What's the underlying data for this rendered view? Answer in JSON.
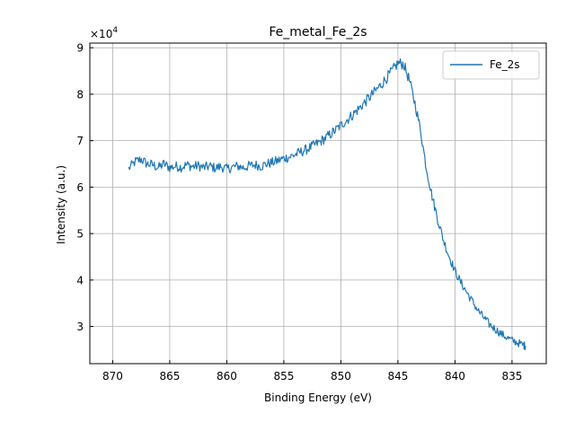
{
  "chart_data": {
    "type": "line",
    "title": "Fe_metal_Fe_2s",
    "xlabel": "Binding Energy (eV)",
    "ylabel": "Intensity (a.u.)",
    "y_scale_label": "×10",
    "y_scale_exponent": "4",
    "x_reversed": true,
    "xlim": [
      872,
      832
    ],
    "ylim": [
      22000,
      91000
    ],
    "x_ticks": [
      870,
      865,
      860,
      855,
      850,
      845,
      840,
      835
    ],
    "y_ticks": [
      30000,
      40000,
      50000,
      60000,
      70000,
      80000,
      90000
    ],
    "y_tick_labels": [
      "3",
      "4",
      "5",
      "6",
      "7",
      "8",
      "9"
    ],
    "grid": true,
    "legend_position": "upper right",
    "series": [
      {
        "name": "Fe_2s",
        "color": "#1f77b4",
        "x": [
          868.6,
          868.0,
          867.5,
          867.0,
          866.5,
          866.0,
          865.5,
          865.0,
          864.5,
          864.0,
          863.5,
          863.0,
          862.5,
          862.0,
          861.5,
          861.0,
          860.5,
          860.0,
          859.5,
          859.0,
          858.5,
          858.0,
          857.5,
          857.0,
          856.5,
          856.0,
          855.5,
          855.0,
          854.5,
          854.0,
          853.5,
          853.0,
          852.5,
          852.0,
          851.5,
          851.0,
          850.5,
          850.0,
          849.5,
          849.0,
          848.5,
          848.0,
          847.5,
          847.0,
          846.5,
          846.0,
          845.5,
          845.0,
          844.5,
          844.0,
          843.5,
          843.0,
          842.5,
          842.0,
          841.5,
          841.0,
          840.5,
          840.0,
          839.5,
          839.0,
          838.5,
          838.0,
          837.5,
          837.0,
          836.5,
          836.0,
          835.5,
          835.0,
          834.5,
          834.0,
          833.8
        ],
        "y": [
          64000,
          65500,
          66000,
          65000,
          64800,
          64200,
          65000,
          64200,
          64500,
          64300,
          64800,
          64400,
          64600,
          64200,
          64500,
          64100,
          64400,
          63900,
          64300,
          64500,
          64200,
          64600,
          64800,
          64500,
          65000,
          65300,
          65700,
          66200,
          66500,
          67000,
          67600,
          68100,
          68800,
          69500,
          70300,
          71200,
          72200,
          73300,
          74400,
          75500,
          76700,
          78000,
          79300,
          80600,
          82000,
          83500,
          85000,
          86700,
          86500,
          83000,
          78000,
          72000,
          64000,
          58000,
          53000,
          48500,
          45000,
          42000,
          39500,
          37500,
          35500,
          33500,
          32000,
          30500,
          29500,
          28500,
          27700,
          27000,
          26500,
          26000,
          25800
        ]
      }
    ]
  }
}
